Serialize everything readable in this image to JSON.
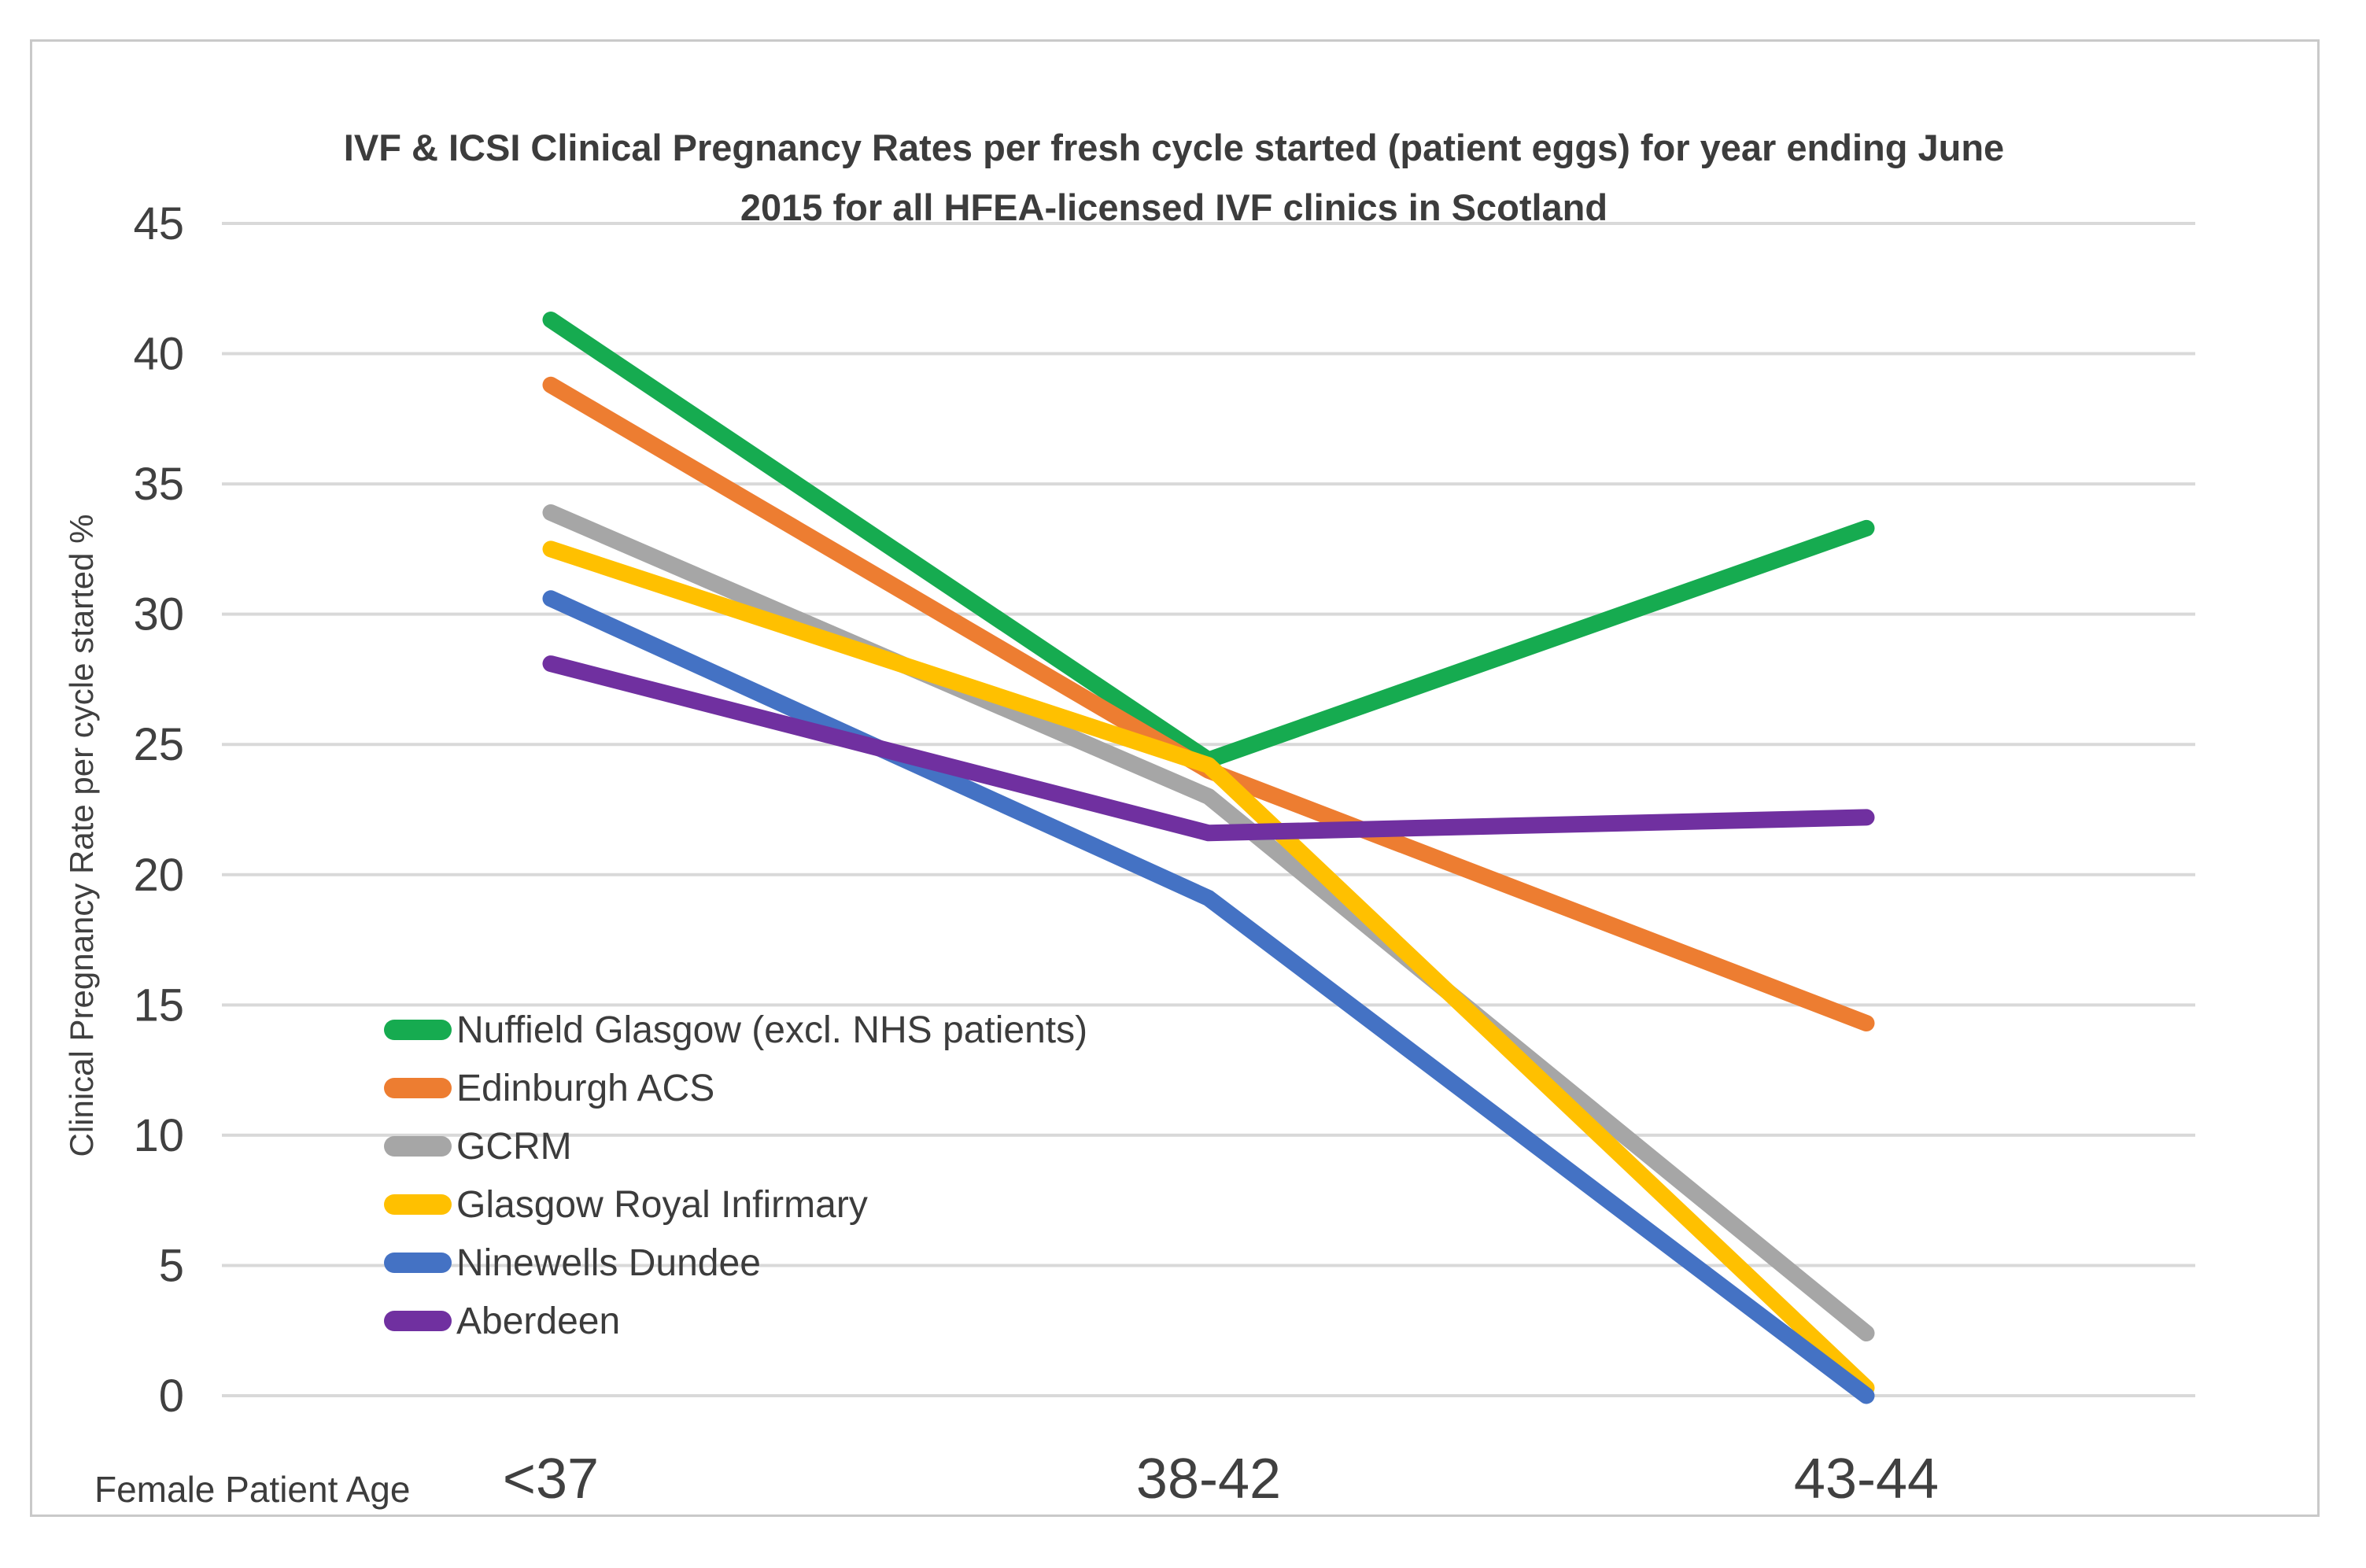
{
  "chart_data": {
    "type": "line",
    "title_line1": "IVF & ICSI Clinical Pregnancy Rates per fresh cycle started (patient eggs) for year ending June",
    "title_line2": "2015 for all HFEA-licensed IVF clinics in Scotland",
    "ylabel": "Clinical Pregnancy Rate per cycle started %",
    "xlabel": "Female Patient Age",
    "categories": [
      "<37",
      "38-42",
      "43-44"
    ],
    "ylim": [
      0,
      45
    ],
    "yticks": [
      0,
      5,
      10,
      15,
      20,
      25,
      30,
      35,
      40,
      45
    ],
    "grid": true,
    "legend_position": "inside-lower-left",
    "gridline_color": "#d9d9d9",
    "frame_color": "#c9c9c9",
    "text_color": "#404040",
    "series": [
      {
        "name": "Nuffield Glasgow (excl. NHS patients)",
        "color": "#16AB50",
        "values": [
          41.3,
          24.4,
          33.3
        ]
      },
      {
        "name": "Edinburgh ACS",
        "color": "#ED7D31",
        "values": [
          38.8,
          24.0,
          14.3
        ]
      },
      {
        "name": "GCRM",
        "color": "#A6A6A6",
        "values": [
          33.9,
          23.0,
          2.4
        ]
      },
      {
        "name": "Glasgow Royal Infirmary",
        "color": "#FFC000",
        "values": [
          32.5,
          24.2,
          0.3
        ]
      },
      {
        "name": "Ninewells Dundee",
        "color": "#4472C4",
        "values": [
          30.6,
          19.1,
          0.0
        ]
      },
      {
        "name": "Aberdeen",
        "color": "#7030A0",
        "values": [
          28.1,
          21.6,
          22.2
        ]
      }
    ]
  }
}
